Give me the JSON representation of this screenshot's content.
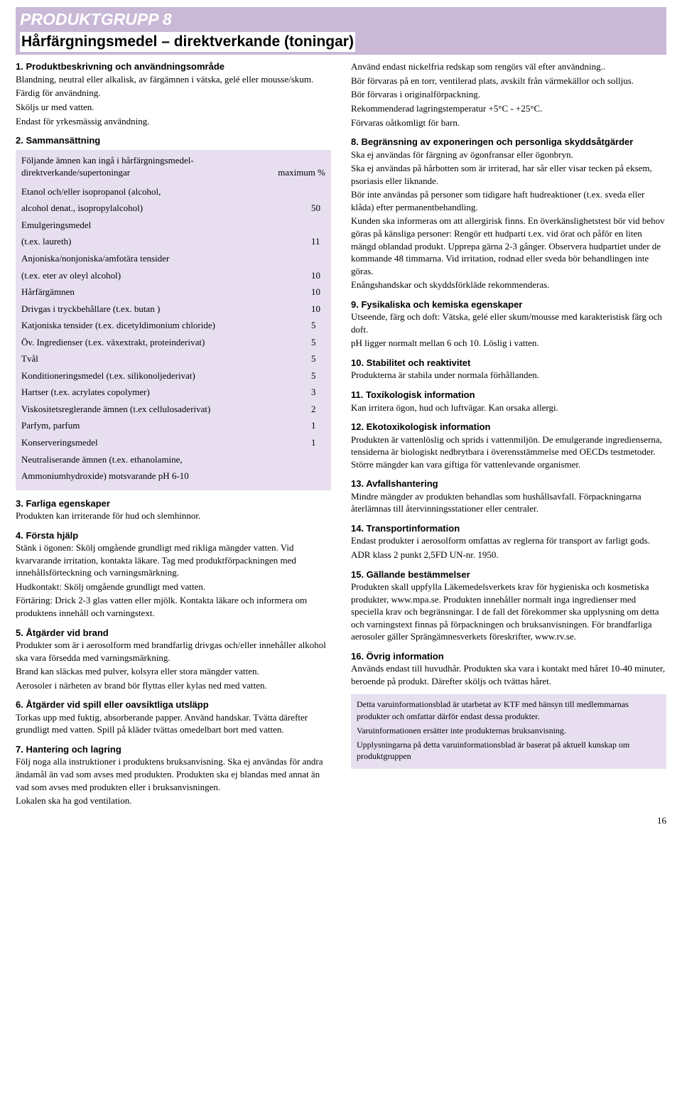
{
  "header": {
    "group": "PRODUKTGRUPP 8",
    "title": "Hårfärgningsmedel – direktverkande (toningar)"
  },
  "left": {
    "s1": {
      "h": "1. Produktbeskrivning och användningsområde",
      "p1": "Blandning, neutral eller alkalisk, av färgämnen i vätska, gelé eller mousse/skum.",
      "p2": "Färdig för användning.",
      "p3": "Sköljs ur med vatten.",
      "p4": "Endast för yrkesmässig användning."
    },
    "s2": {
      "h": "2. Sammansättning",
      "intro1": "Följande ämnen kan ingå i hårfärgningsmedel-",
      "intro2a": "direktverkande/supertoningar",
      "intro2b": "maximum %"
    },
    "comp": [
      {
        "name": "Etanol och/eller isopropanol (alcohol,",
        "val": ""
      },
      {
        "name": "alcohol denat., isopropylalcohol)",
        "val": "50"
      },
      {
        "name": "Emulgeringsmedel",
        "val": ""
      },
      {
        "name": "(t.ex. laureth)",
        "val": "11"
      },
      {
        "name": "Anjoniska/nonjoniska/amfotära tensider",
        "val": ""
      },
      {
        "name": "(t.ex. eter av  oleyl alcohol)",
        "val": "10"
      },
      {
        "name": "Hårfärgämnen",
        "val": "10"
      },
      {
        "name": "Drivgas i tryckbehållare (t.ex. butan  )",
        "val": "10"
      },
      {
        "name": "Katjoniska tensider (t.ex. dicetyldimonium chloride)",
        "val": "5"
      },
      {
        "name": "Öv. Ingredienser (t.ex. växextrakt, proteinderivat)",
        "val": "5"
      },
      {
        "name": "Tvål",
        "val": "5"
      },
      {
        "name": "Konditioneringsmedel (t.ex. silikonoljederivat)",
        "val": "5"
      },
      {
        "name": "Hartser (t.ex. acrylates copolymer)",
        "val": "3"
      },
      {
        "name": "Viskositetsreglerande ämnen (t.ex cellulosaderivat)",
        "val": "2"
      },
      {
        "name": "Parfym,  parfum",
        "val": "1"
      },
      {
        "name": "Konserveringsmedel",
        "val": "1"
      },
      {
        "name": "Neutraliserande ämnen (t.ex. ethanolamine,",
        "val": ""
      },
      {
        "name": "Ammoniumhydroxide) motsvarande pH 6-10",
        "val": ""
      }
    ],
    "s3": {
      "h": "3. Farliga egenskaper",
      "p1": "Produkten kan irriterande för hud och slemhinnor."
    },
    "s4": {
      "h": "4. Första hjälp",
      "p1": "Stänk i ögonen: Skölj omgående grundligt med rikliga mängder vatten. Vid kvarvarande irritation, kontakta läkare. Tag med produktförpackningen med innehållsförteckning och varningsmärkning.",
      "p2": "Hudkontakt: Skölj omgående grundligt med vatten.",
      "p3": "Förtäring: Drick 2-3 glas vatten eller mjölk. Kontakta läkare och informera om produktens innehåll och varningstext."
    },
    "s5": {
      "h": "5. Åtgärder vid brand",
      "p1": "Produkter som är i aerosolform med brandfarlig drivgas och/eller innehåller alkohol ska vara försedda med varningsmärkning.",
      "p2": "Brand kan släckas med pulver, kolsyra eller stora mängder vatten.",
      "p3": "Aerosoler i närheten av brand bör flyttas eller kylas ned med vatten."
    },
    "s6": {
      "h": "6. Åtgärder vid spill eller oavsiktliga utsläpp",
      "p1": "Torkas upp med fuktig, absorberande papper. Använd handskar. Tvätta därefter grundligt med vatten. Spill på kläder tvättas omedelbart bort med vatten."
    },
    "s7": {
      "h": "7. Hantering och lagring",
      "p1": "Följ noga alla instruktioner i produktens bruksanvisning. Ska ej användas för andra ändamål än vad som avses med produkten. Produkten ska ej blandas med annat än vad som avses med produkten eller i bruksanvisningen.",
      "p2": " Lokalen ska ha god ventilation."
    }
  },
  "right": {
    "s7b": {
      "p1": "Använd endast nickelfria redskap som rengörs väl efter användning..",
      "p2": "Bör förvaras på en torr, ventilerad plats, avskilt från värmekällor och solljus.",
      "p3": "Bör förvaras i originalförpackning.",
      "p4": "Rekommenderad lagringstemperatur +5°C - +25°C.",
      "p5": "Förvaras oåtkomligt för barn."
    },
    "s8": {
      "h": "8. Begränsning av exponeringen och personliga skyddsåtgärder",
      "p1": "Ska ej användas för färgning av ögonfransar eller ögonbryn.",
      "p2": "Ska ej användas på hårbotten som är irriterad, har sår eller visar tecken på eksem, psoriasis eller liknande.",
      "p3": "Bör inte användas på personer som tidigare haft hudreaktioner (t.ex. sveda eller klåda) efter permanentbehandling.",
      "p4": "Kunden ska informeras om att allergirisk finns. En överkänslighetstest bör vid behov göras på känsliga personer: Rengör ett hudparti t.ex. vid örat och påför en liten mängd oblandad produkt. Upprepa gärna 2-3 gånger. Observera hudpartiet under de kommande 48 timmarna. Vid irritation, rodnad eller sveda bör behandlingen inte göras.",
      "p5": "Enångshandskar och skyddsförkläde rekommenderas."
    },
    "s9": {
      "h": "9. Fysikaliska och kemiska egenskaper",
      "p1": "Utseende, färg och doft: Vätska, gelé eller skum/mousse med karakteristisk färg och doft.",
      "p2": "pH ligger normalt mellan 6 och 10. Löslig i vatten."
    },
    "s10": {
      "h": "10. Stabilitet och reaktivitet",
      "p1": "Produkterna är stabila under normala förhållanden."
    },
    "s11": {
      "h": "11. Toxikologisk information",
      "p1": "Kan irritera ögon, hud och luftvägar. Kan orsaka allergi."
    },
    "s12": {
      "h": "12. Ekotoxikologisk information",
      "p1": "Produkten är vattenlöslig och sprids i vattenmiljön. De emulgerande ingredienserna, tensiderna är biologiskt nedbrytbara i överensstämmelse med OECDs testmetoder. Större mängder kan vara giftiga för vattenlevande organismer."
    },
    "s13": {
      "h": "13. Avfallshantering",
      "p1": "Mindre mängder av produkten behandlas som hushållsavfall. Förpackningarna återlämnas till återvinningsstationer eller centraler."
    },
    "s14": {
      "h": "14. Transportinformation",
      "p1": "Endast produkter i aerosolform omfattas av reglerna för transport av farligt gods.",
      "p2": "ADR klass 2 punkt 2,5FD UN-nr. 1950."
    },
    "s15": {
      "h": "15. Gällande bestämmelser",
      "p1": "Produkten skall uppfylla Läkemedelsverkets krav för hygieniska och kosmetiska produkter, www.mpa.se. Produkten innehåller normalt inga ingredienser med speciella krav och begränsningar. I de fall det förekommer ska upplysning om detta och varningstext finnas på förpackningen och bruksanvisningen. För brandfarliga aerosoler gäller Sprängämnesverkets föreskrifter, www.rv.se."
    },
    "s16": {
      "h": "16. Övrig information",
      "p1": "Används endast till huvudhår. Produkten ska vara i kontakt med håret 10-40 minuter, beroende på produkt. Därefter sköljs och tvättas håret."
    }
  },
  "footer": {
    "p1": "Detta varuinformationsblad är utarbetat av KTF med hänsyn till medlemmarnas produkter och omfattar därför endast dessa produkter.",
    "p2": " Varuinformationen ersätter inte produkternas bruksanvisning.",
    "p3": "Upplysningarna på detta varuinformationsblad är baserat på aktuell kunskap om produktgruppen"
  },
  "page_number": "16"
}
